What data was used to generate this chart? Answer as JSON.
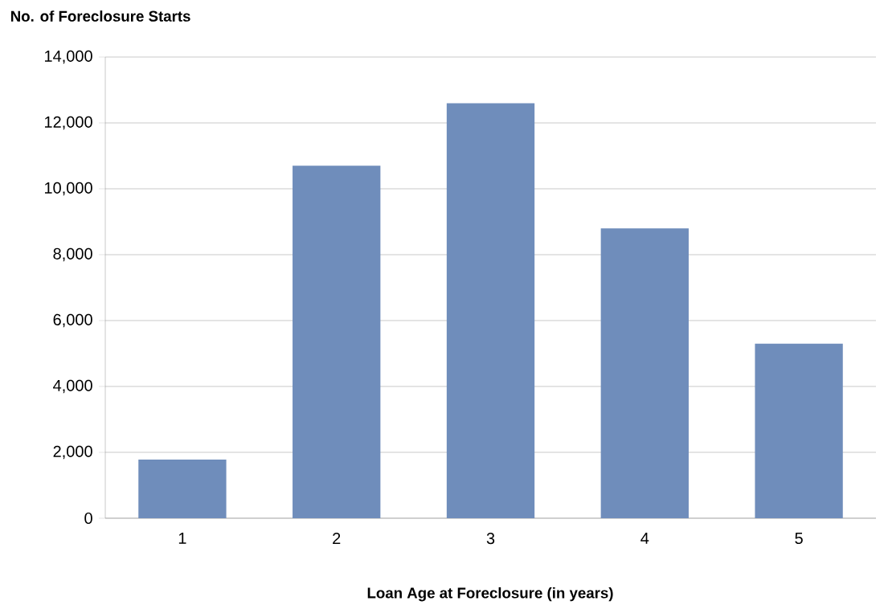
{
  "chart_data": {
    "type": "bar",
    "ylabel": "No. of Foreclosure Starts",
    "xlabel": "Loan Age at Foreclosure (in years)",
    "categories": [
      "1",
      "2",
      "3",
      "4",
      "5"
    ],
    "values": [
      1780,
      10700,
      12600,
      8800,
      5300
    ],
    "color": "#6f8dbb",
    "ylim": [
      0,
      14000
    ],
    "yticks": [
      {
        "value": 0,
        "label": "0"
      },
      {
        "value": 2000,
        "label": "2,000"
      },
      {
        "value": 4000,
        "label": "4,000"
      },
      {
        "value": 6000,
        "label": "6,000"
      },
      {
        "value": 8000,
        "label": "8,000"
      },
      {
        "value": 10000,
        "label": "10,000"
      },
      {
        "value": 12000,
        "label": "12,000"
      },
      {
        "value": 14000,
        "label": "14,000"
      }
    ],
    "grid": "y"
  }
}
